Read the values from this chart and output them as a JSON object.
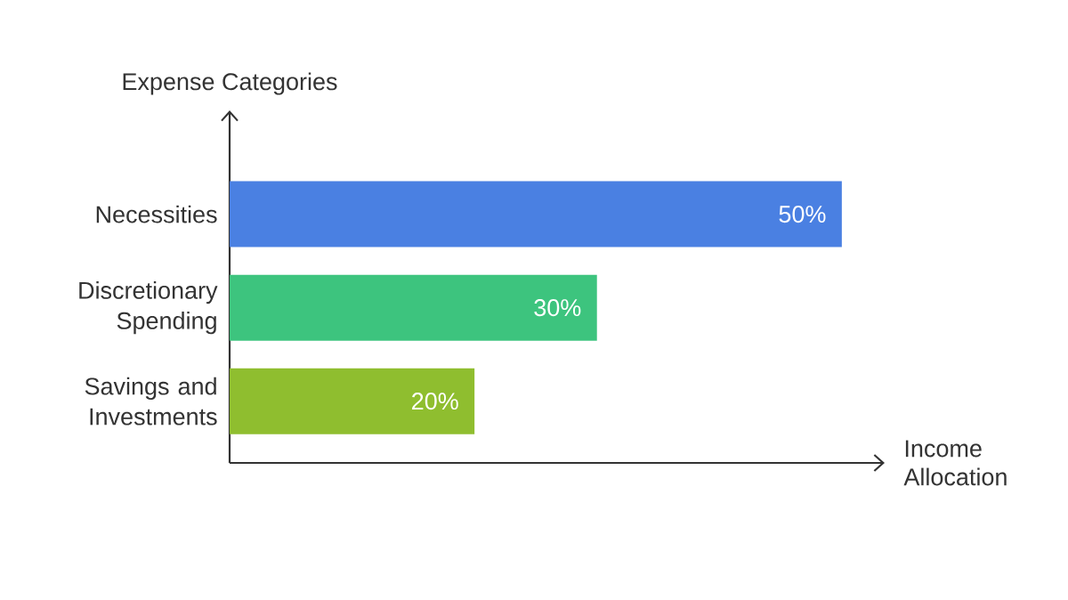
{
  "chart_data": {
    "type": "bar",
    "orientation": "horizontal",
    "xlabel": "Income Allocation",
    "ylabel": "Expense Categories",
    "categories": [
      "Necessities",
      "Discretionary Spending",
      "Savings and Investments"
    ],
    "values": [
      50,
      30,
      20
    ],
    "value_labels": [
      "50%",
      "30%",
      "20%"
    ],
    "colors": [
      "#4a80e2",
      "#3dc47e",
      "#8fbe2f"
    ],
    "xlim": [
      0,
      53.5
    ]
  }
}
